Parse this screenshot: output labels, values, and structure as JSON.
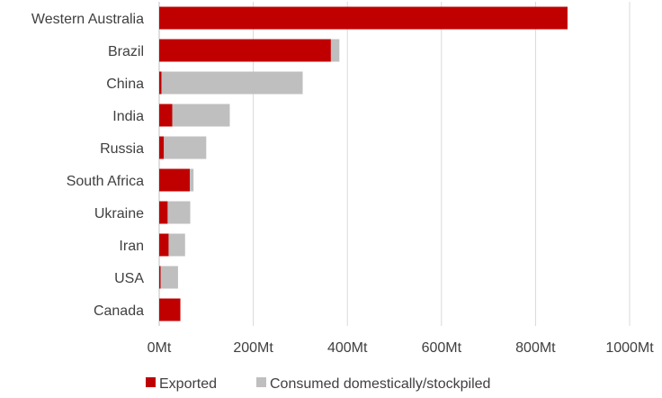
{
  "chart_data": {
    "type": "bar",
    "orientation": "horizontal",
    "stacked": true,
    "categories": [
      "Western Australia",
      "Brazil",
      "China",
      "India",
      "Russia",
      "South Africa",
      "Ukraine",
      "Iran",
      "USA",
      "Canada"
    ],
    "series": [
      {
        "name": "Exported",
        "color": "#c00000",
        "values": [
          868,
          365,
          5,
          28,
          10,
          65,
          18,
          20,
          3,
          45
        ]
      },
      {
        "name": "Consumed domestically/stockpiled",
        "color": "#bfbfbf",
        "values": [
          0,
          18,
          300,
          122,
          90,
          8,
          48,
          35,
          37,
          0
        ]
      }
    ],
    "xlim": [
      0,
      1000
    ],
    "xticks": [
      "0Mt",
      "200Mt",
      "400Mt",
      "600Mt",
      "800Mt",
      "1000Mt"
    ],
    "grid": true,
    "legend_position": "bottom"
  }
}
